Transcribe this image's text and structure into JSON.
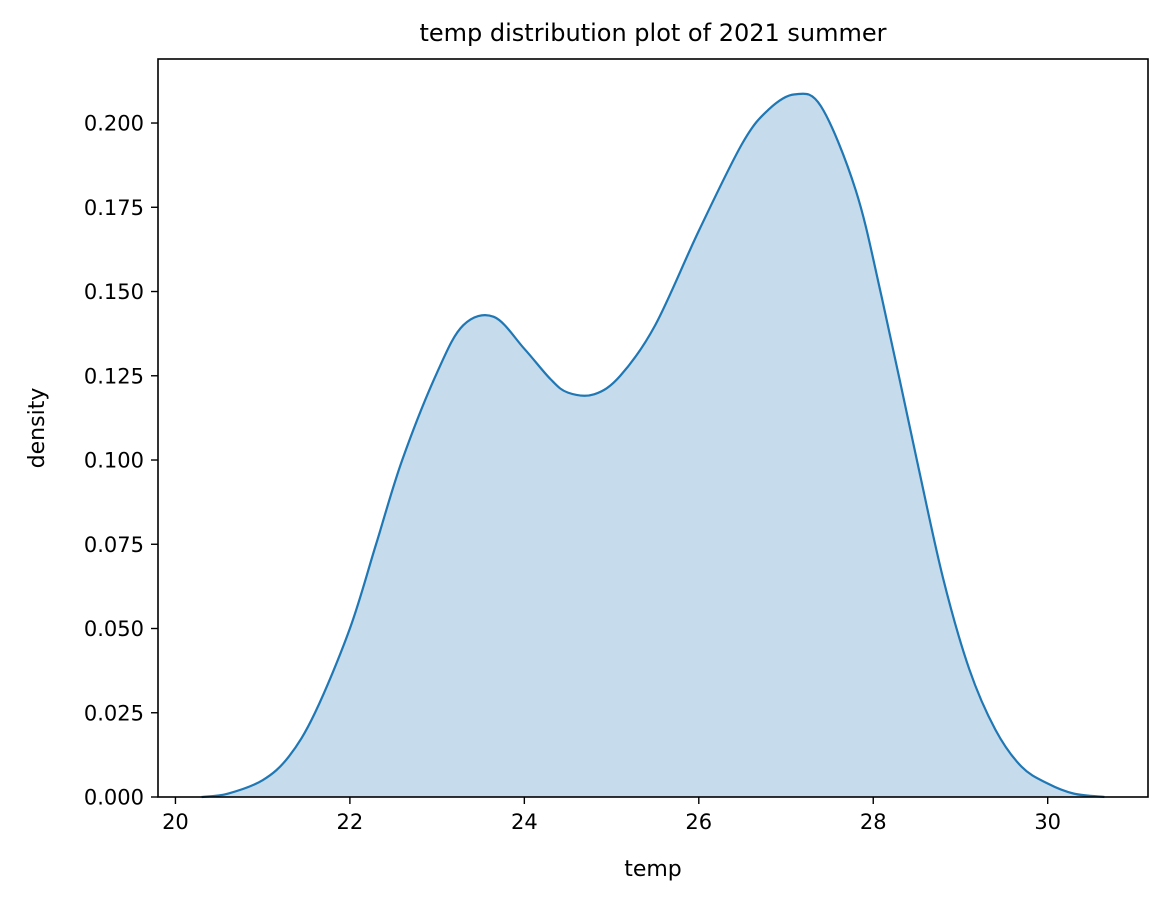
{
  "chart_data": {
    "type": "area",
    "title": "temp distribution plot of 2021 summer",
    "xlabel": "temp",
    "ylabel": "density",
    "xlim": [
      19.8,
      31.15
    ],
    "ylim": [
      0,
      0.219
    ],
    "xticks": [
      20,
      22,
      24,
      26,
      28,
      30
    ],
    "xtick_labels": [
      "20",
      "22",
      "24",
      "26",
      "28",
      "30"
    ],
    "yticks": [
      0,
      0.025,
      0.05,
      0.075,
      0.1,
      0.125,
      0.15,
      0.175,
      0.2
    ],
    "ytick_labels": [
      "0.000",
      "0.025",
      "0.050",
      "0.075",
      "0.100",
      "0.125",
      "0.150",
      "0.175",
      "0.200"
    ],
    "grid": false,
    "series": [
      {
        "color": "#1f77b4",
        "fill_color": "#c6dbec",
        "x": [
          20.3,
          20.6,
          21.0,
          21.3,
          21.6,
          22.0,
          22.3,
          22.6,
          23.0,
          23.3,
          23.65,
          24.0,
          24.3,
          24.5,
          24.8,
          25.1,
          25.5,
          26.0,
          26.5,
          26.8,
          27.1,
          27.4,
          27.8,
          28.1,
          28.5,
          28.8,
          29.1,
          29.4,
          29.7,
          30.0,
          30.3,
          30.65
        ],
        "y": [
          0.0,
          0.001,
          0.005,
          0.012,
          0.025,
          0.05,
          0.075,
          0.1,
          0.126,
          0.14,
          0.1425,
          0.133,
          0.124,
          0.12,
          0.1195,
          0.125,
          0.14,
          0.168,
          0.194,
          0.204,
          0.2085,
          0.205,
          0.18,
          0.148,
          0.1,
          0.065,
          0.038,
          0.02,
          0.009,
          0.004,
          0.001,
          0.0
        ]
      }
    ]
  }
}
